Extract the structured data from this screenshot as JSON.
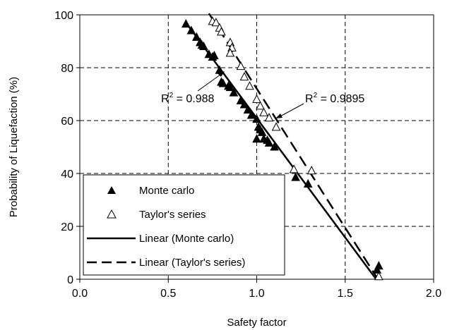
{
  "chart_data": {
    "type": "scatter",
    "title": "",
    "xlabel": "Safety factor",
    "ylabel": "Probability of Liquefaction (%)",
    "xlim": [
      0.0,
      2.0
    ],
    "ylim": [
      0,
      100
    ],
    "xticks": [
      "0.0",
      "0.5",
      "1.0",
      "1.5",
      "2.0"
    ],
    "yticks": [
      "0",
      "20",
      "40",
      "60",
      "80",
      "100"
    ],
    "grid": "dashed",
    "legend_position": "bottom-left",
    "series": [
      {
        "name": "Monte carlo",
        "marker": "filled-triangle",
        "color": "#000000",
        "points": [
          [
            0.6,
            96.5
          ],
          [
            0.63,
            94.0
          ],
          [
            0.66,
            91.5
          ],
          [
            0.68,
            89.5
          ],
          [
            0.69,
            88.5
          ],
          [
            0.7,
            88.0
          ],
          [
            0.73,
            85.0
          ],
          [
            0.75,
            84.0
          ],
          [
            0.76,
            84.5
          ],
          [
            0.79,
            79.0
          ],
          [
            0.8,
            74.5
          ],
          [
            0.81,
            74.0
          ],
          [
            0.84,
            73.0
          ],
          [
            0.85,
            72.5
          ],
          [
            0.87,
            70.5
          ],
          [
            0.91,
            67.5
          ],
          [
            0.93,
            66.0
          ],
          [
            0.95,
            64.0
          ],
          [
            0.97,
            62.0
          ],
          [
            1.0,
            60.5
          ],
          [
            1.01,
            57.5
          ],
          [
            1.02,
            56.5
          ],
          [
            1.03,
            55.5
          ],
          [
            1.0,
            53.0
          ],
          [
            1.04,
            53.0
          ],
          [
            1.06,
            52.5
          ],
          [
            1.07,
            51.5
          ],
          [
            1.1,
            50.0
          ],
          [
            1.22,
            38.5
          ],
          [
            1.29,
            36.0
          ],
          [
            1.69,
            5.0
          ],
          [
            1.68,
            3.5
          ]
        ]
      },
      {
        "name": "Taylor's series",
        "marker": "open-triangle",
        "color": "#000000",
        "points": [
          [
            0.75,
            97.5
          ],
          [
            0.77,
            97.0
          ],
          [
            0.79,
            95.0
          ],
          [
            0.8,
            93.5
          ],
          [
            0.85,
            89.5
          ],
          [
            0.86,
            87.5
          ],
          [
            0.85,
            85.5
          ],
          [
            0.91,
            80.5
          ],
          [
            0.93,
            76.5
          ],
          [
            0.96,
            73.0
          ],
          [
            1.0,
            68.0
          ],
          [
            1.02,
            65.5
          ],
          [
            1.04,
            63.0
          ],
          [
            1.07,
            61.0
          ],
          [
            1.11,
            57.5
          ],
          [
            1.21,
            41.5
          ],
          [
            1.31,
            41.0
          ],
          [
            1.69,
            1.0
          ]
        ]
      },
      {
        "name": "Linear (Monte carlo)",
        "type": "line",
        "style": "solid",
        "color": "#000000",
        "x": [
          0.6,
          1.675
        ],
        "y": [
          97.0,
          0.0
        ]
      },
      {
        "name": "Linear (Taylor's series)",
        "type": "line",
        "style": "dashed",
        "color": "#000000",
        "x": [
          0.73,
          1.685
        ],
        "y": [
          100.5,
          0.0
        ]
      }
    ],
    "annotations": [
      {
        "text_prefix": "R",
        "sup": "2",
        "text_suffix": " = 0.988"
      },
      {
        "text_prefix": "R",
        "sup": "2",
        "text_suffix": " = 0.9895"
      }
    ]
  }
}
